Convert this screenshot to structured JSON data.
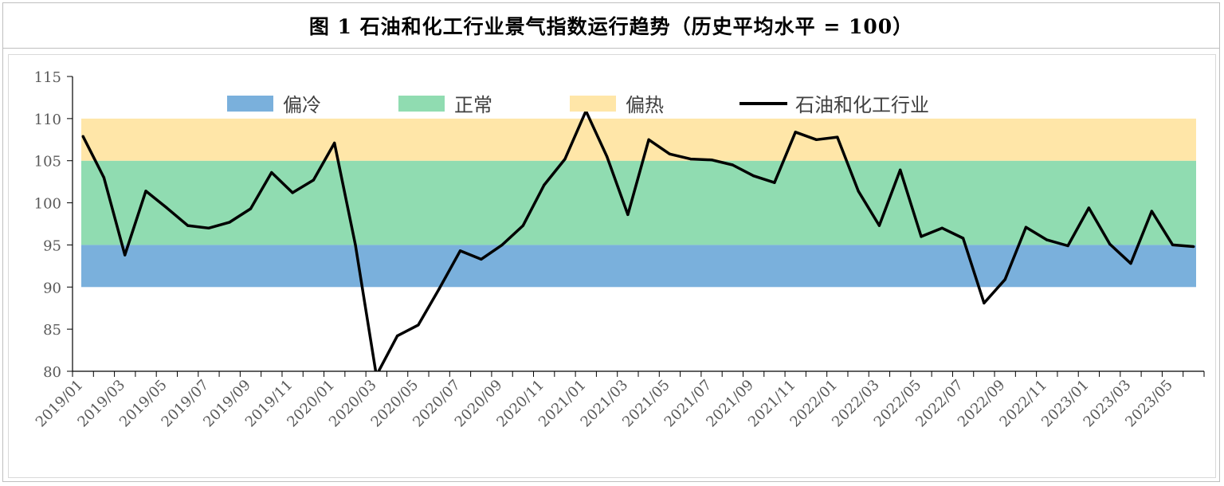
{
  "title": "图 1  石油和化工行业景气指数运行趋势（历史平均水平 = 100）",
  "chart_data": {
    "type": "line",
    "title": "图 1  石油和化工行业景气指数运行趋势（历史平均水平 = 100）",
    "xlabel": "",
    "ylabel": "",
    "ylim": [
      80,
      115
    ],
    "yticks": [
      115,
      110,
      105,
      100,
      95,
      90,
      85,
      80
    ],
    "grid": false,
    "legend_position": "top",
    "bands": [
      {
        "name": "偏冷",
        "from": 90,
        "to": 95,
        "color": "#7ab0dc"
      },
      {
        "name": "正常",
        "from": 95,
        "to": 105,
        "color": "#90dcb1"
      },
      {
        "name": "偏热",
        "from": 105,
        "to": 110,
        "color": "#ffe6a8"
      }
    ],
    "x_tick_labels": [
      "2019/01",
      "2019/03",
      "2019/05",
      "2019/07",
      "2019/09",
      "2019/11",
      "2020/01",
      "2020/03",
      "2020/05",
      "2020/07",
      "2020/09",
      "2020/11",
      "2021/01",
      "2021/03",
      "2021/05",
      "2021/07",
      "2021/09",
      "2021/11",
      "2022/01",
      "2022/03",
      "2022/05",
      "2022/07",
      "2022/09",
      "2022/11",
      "2023/01",
      "2023/03",
      "2023/05"
    ],
    "series": [
      {
        "name": "石油和化工行业",
        "color": "#000000",
        "values": [
          107.9,
          103.0,
          93.8,
          101.4,
          99.4,
          97.3,
          97.0,
          97.7,
          99.3,
          103.6,
          101.2,
          102.7,
          107.1,
          95.0,
          79.5,
          84.2,
          85.5,
          89.8,
          94.3,
          93.3,
          95.0,
          97.3,
          102.1,
          105.2,
          110.9,
          105.5,
          98.6,
          107.5,
          105.8,
          105.2,
          105.1,
          104.5,
          103.2,
          102.4,
          108.4,
          107.5,
          107.8,
          101.4,
          97.3,
          103.9,
          96.0,
          97.0,
          95.8,
          88.1,
          90.9,
          97.1,
          95.6,
          94.9,
          99.4,
          95.1,
          92.8,
          99.0,
          95.0,
          94.8
        ]
      }
    ]
  },
  "legend": {
    "cold": {
      "label": "偏冷",
      "color": "#7ab0dc"
    },
    "normal": {
      "label": "正常",
      "color": "#90dcb1"
    },
    "hot": {
      "label": "偏热",
      "color": "#ffe6a8"
    },
    "line": {
      "label": "石油和化工行业",
      "color": "#000000"
    }
  }
}
